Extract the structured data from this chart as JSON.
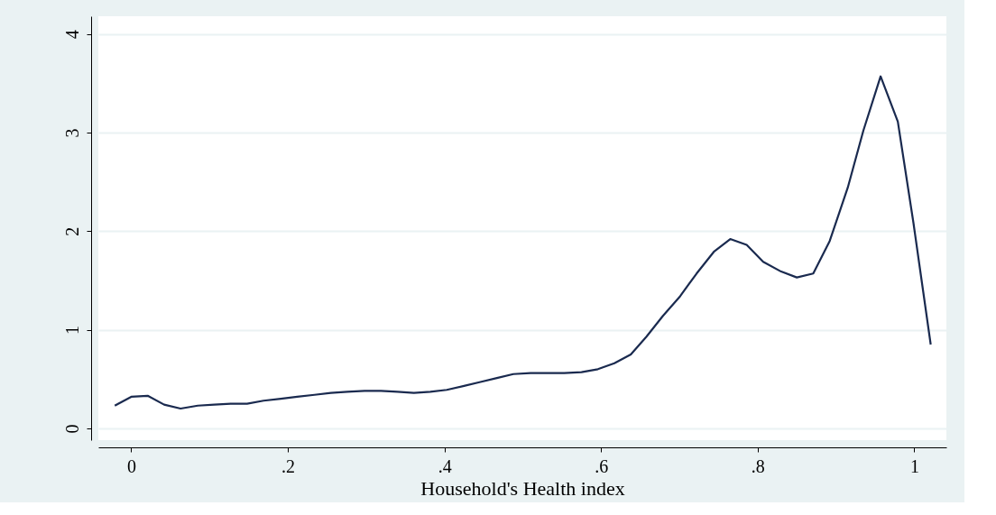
{
  "chart_data": {
    "type": "line",
    "xlabel": "Household's Health index",
    "x": [
      -0.021,
      0.0,
      0.021,
      0.042,
      0.063,
      0.085,
      0.106,
      0.127,
      0.148,
      0.169,
      0.191,
      0.212,
      0.234,
      0.255,
      0.276,
      0.298,
      0.319,
      0.34,
      0.361,
      0.382,
      0.403,
      0.425,
      0.446,
      0.467,
      0.488,
      0.51,
      0.532,
      0.553,
      0.575,
      0.596,
      0.617,
      0.638,
      0.658,
      0.679,
      0.701,
      0.722,
      0.744,
      0.765,
      0.786,
      0.807,
      0.83,
      0.85,
      0.871,
      0.892,
      0.915,
      0.935,
      0.957,
      0.979,
      0.999,
      1.021
    ],
    "series": [
      {
        "color": "#1a2a4f",
        "values": [
          0.23,
          0.32,
          0.33,
          0.24,
          0.2,
          0.23,
          0.24,
          0.25,
          0.25,
          0.28,
          0.3,
          0.32,
          0.34,
          0.36,
          0.37,
          0.38,
          0.38,
          0.37,
          0.36,
          0.37,
          0.39,
          0.43,
          0.47,
          0.51,
          0.55,
          0.56,
          0.56,
          0.56,
          0.57,
          0.6,
          0.66,
          0.75,
          0.93,
          1.14,
          1.34,
          1.57,
          1.79,
          1.92,
          1.86,
          1.69,
          1.59,
          1.53,
          1.57,
          1.9,
          2.44,
          3.02,
          3.57,
          3.11,
          2.08,
          0.85
        ]
      }
    ],
    "xlim": [
      -0.042,
      1.041
    ],
    "ylim": [
      -0.12,
      4.18
    ],
    "xticks": [
      0,
      {
        "value": 0.2,
        "label": ".2"
      },
      {
        "value": 0.4,
        "label": ".4"
      },
      {
        "value": 0.6,
        "label": ".6"
      },
      {
        "value": 0.8,
        "label": ".8"
      },
      1
    ],
    "yticks": [
      0,
      1,
      2,
      3,
      4
    ],
    "grid": "y",
    "marker": "none",
    "line_style": "solid"
  }
}
